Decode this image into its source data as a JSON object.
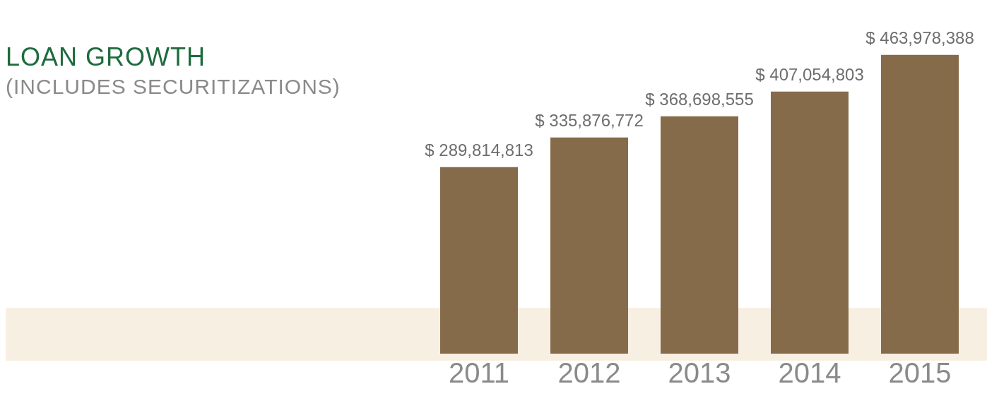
{
  "chart_data": {
    "type": "bar",
    "title": "LOAN GROWTH",
    "subtitle": "(INCLUDES SECURITIZATIONS)",
    "categories": [
      "2011",
      "2012",
      "2013",
      "2014",
      "2015"
    ],
    "values": [
      289814813,
      335876772,
      368698555,
      407054803,
      463978388
    ],
    "value_labels": [
      "$ 289,814,813",
      "$ 335,876,772",
      "$ 368,698,555",
      "$ 407,054,803",
      "$ 463,978,388"
    ],
    "color": "#866b4a",
    "tick_labels": "x",
    "grid": false,
    "legend": false
  }
}
